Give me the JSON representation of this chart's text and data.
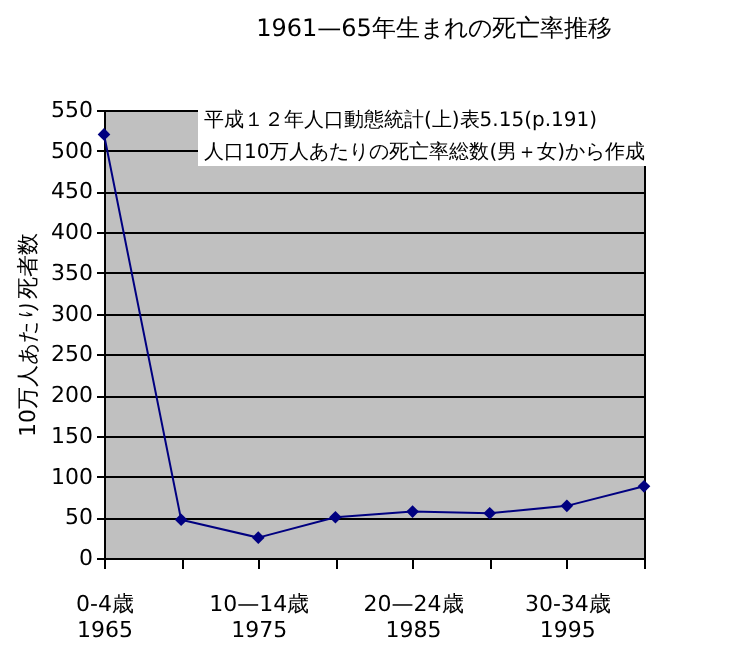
{
  "chart_data": {
    "type": "line",
    "title": "1961—65年生まれの死亡率推移",
    "ylabel": "10万人あたり死者数",
    "categories": [
      "0-4歳\n1965",
      null,
      "10—14歳\n1975",
      null,
      "20—24歳\n1985",
      null,
      "30-34歳\n1995",
      null
    ],
    "series": [
      {
        "color": "#000080",
        "values": [
          520,
          47,
          25,
          50,
          57,
          55,
          64,
          88
        ]
      }
    ],
    "ylim": [
      0,
      550
    ],
    "yticks": [
      0,
      50,
      100,
      150,
      200,
      250,
      300,
      350,
      400,
      450,
      500,
      550
    ],
    "grid": "y",
    "marker": "diamond",
    "line_style": "solid",
    "annotations": [
      "平成１２年人口動態統計(上)表5.15(p.191)\n人口10万人あたりの死亡率総数(男＋女)から作成"
    ]
  }
}
